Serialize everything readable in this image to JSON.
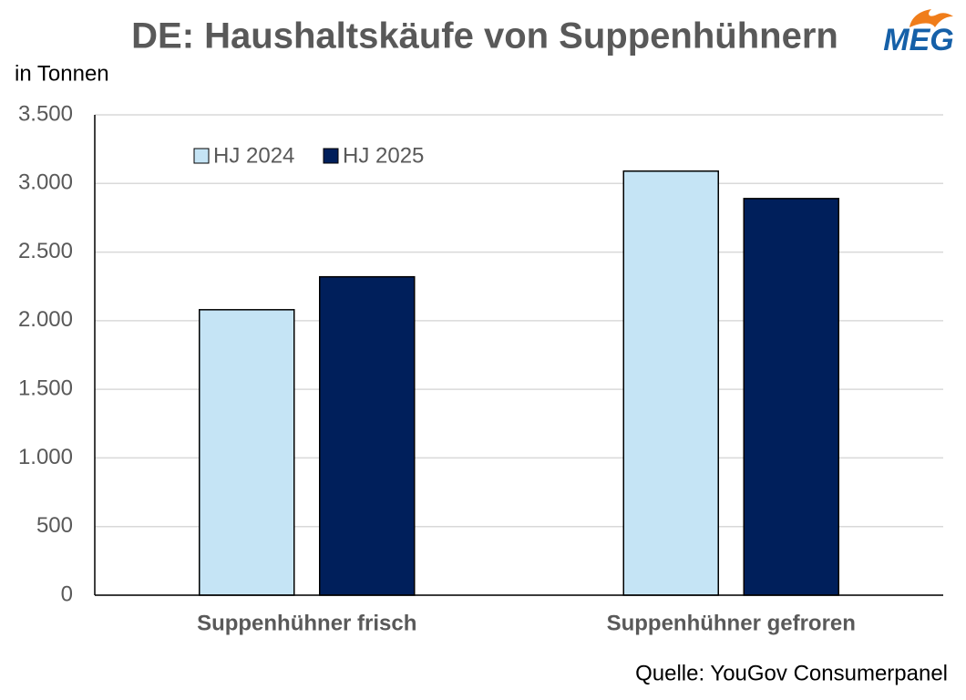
{
  "chart_data": {
    "type": "bar",
    "title": "DE: Haushaltskäufe von Suppenhühnern",
    "logo": "MEG",
    "y_label": "in Tonnen",
    "source": "Quelle: YouGov Consumerpanel",
    "categories": [
      "Suppenhühner frisch",
      "Suppenhühner gefroren"
    ],
    "series": [
      {
        "name": "HJ 2024",
        "color": "#c5e4f5",
        "values": [
          2080,
          3090
        ]
      },
      {
        "name": "HJ 2025",
        "color": "#001f5b",
        "values": [
          2320,
          2890
        ]
      }
    ],
    "ylim": [
      0,
      3500
    ],
    "yticks": [
      0,
      500,
      {
        "value": 1000,
        "label": "1.000"
      },
      {
        "value": 1500,
        "label": "1.500"
      },
      {
        "value": 2000,
        "label": "2.000"
      },
      {
        "value": 2500,
        "label": "2.500"
      },
      {
        "value": 3000,
        "label": "3.000"
      },
      {
        "value": 3500,
        "label": "3.500"
      }
    ],
    "grid": true,
    "legend": "top-left"
  }
}
